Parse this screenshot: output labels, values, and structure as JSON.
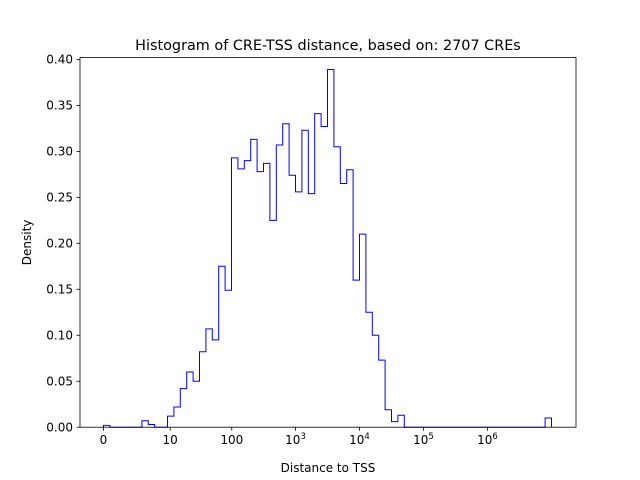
{
  "chart_data": {
    "type": "histogram",
    "title": "Histogram of CRE-TSS distance, based on: 2707 CREs",
    "xlabel": "Distance to TSS",
    "ylabel": "Density",
    "x_scale": "log-like (symlog), 10 bins per decade",
    "x_ticks": [
      {
        "value": 0,
        "base": "0",
        "exp": ""
      },
      {
        "value": 10,
        "base": "10",
        "exp": ""
      },
      {
        "value": 100,
        "base": "100",
        "exp": ""
      },
      {
        "value": 1000,
        "base": "10",
        "exp": "3"
      },
      {
        "value": 10000,
        "base": "10",
        "exp": "4"
      },
      {
        "value": 100000,
        "base": "10",
        "exp": "5"
      },
      {
        "value": 1000000,
        "base": "10",
        "exp": "6"
      }
    ],
    "y_ticks": [
      "0.00",
      "0.05",
      "0.10",
      "0.15",
      "0.20",
      "0.25",
      "0.30",
      "0.35",
      "0.40"
    ],
    "ylim": [
      0,
      0.402
    ],
    "bin_width_decades": 0.1,
    "densities": [
      0.002,
      0,
      0,
      0,
      0,
      0,
      0.007,
      0.003,
      0,
      0,
      0.012,
      0.022,
      0.042,
      0.06,
      0.05,
      0.082,
      0.107,
      0.095,
      0.175,
      0.149,
      0.293,
      0.281,
      0.29,
      0.313,
      0.278,
      0.287,
      0.225,
      0.307,
      0.33,
      0.274,
      0.256,
      0.323,
      0.254,
      0.341,
      0.327,
      0.389,
      0.305,
      0.265,
      0.28,
      0.16,
      0.21,
      0.125,
      0.1,
      0.073,
      0.019,
      0.006,
      0.013,
      0,
      0,
      0,
      0,
      0,
      0,
      0,
      0,
      0,
      0,
      0,
      0,
      0,
      0,
      0,
      0,
      0,
      0,
      0,
      0,
      0,
      0,
      0.01
    ],
    "color": "#0000ff"
  }
}
